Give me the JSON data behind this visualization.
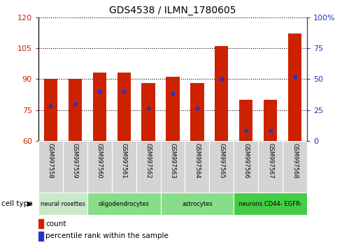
{
  "title": "GDS4538 / ILMN_1780605",
  "samples": [
    "GSM997558",
    "GSM997559",
    "GSM997560",
    "GSM997561",
    "GSM997562",
    "GSM997563",
    "GSM997564",
    "GSM997565",
    "GSM997566",
    "GSM997567",
    "GSM997568"
  ],
  "bar_heights": [
    90,
    90,
    93,
    93,
    88,
    91,
    88,
    106,
    80,
    80,
    112
  ],
  "blue_markers": [
    77,
    78,
    84,
    84,
    76,
    83,
    76,
    90,
    65,
    65,
    91
  ],
  "ymin": 60,
  "ymax": 120,
  "yticks": [
    60,
    75,
    90,
    105,
    120
  ],
  "right_yticks_val": [
    0,
    25,
    50,
    75,
    100
  ],
  "right_yticks_label": [
    "0",
    "25",
    "50",
    "75",
    "100%"
  ],
  "bar_color": "#cc2200",
  "blue_color": "#2233cc",
  "cell_types": [
    {
      "label": "neural rosettes",
      "start": 0,
      "end": 1,
      "color": "#c8e8c8"
    },
    {
      "label": "oligodendrocytes",
      "start": 2,
      "end": 4,
      "color": "#88dd88"
    },
    {
      "label": "astrocytes",
      "start": 5,
      "end": 7,
      "color": "#88dd88"
    },
    {
      "label": "neurons CD44- EGFR-",
      "start": 8,
      "end": 10,
      "color": "#44cc44"
    }
  ],
  "legend_count_label": "count",
  "legend_pct_label": "percentile rank within the sample",
  "cell_type_label": "cell type",
  "gray_bg": "#d4d4d4",
  "white": "#ffffff"
}
